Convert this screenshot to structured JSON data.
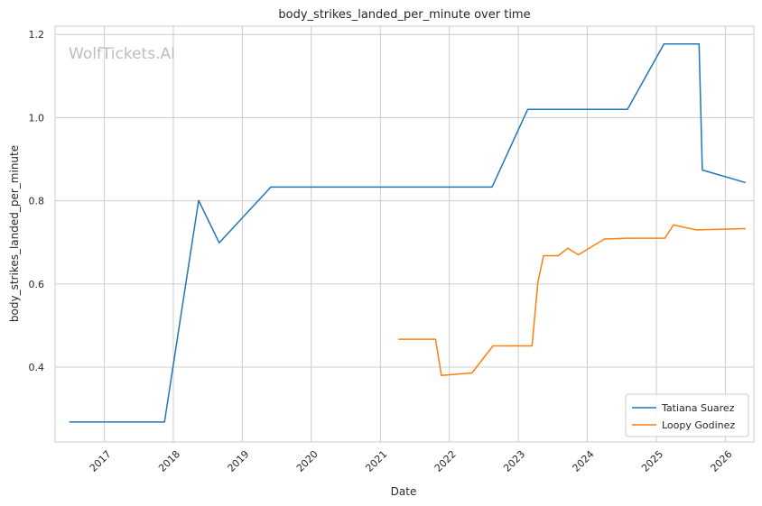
{
  "chart_data": {
    "type": "line",
    "title": "body_strikes_landed_per_minute over time",
    "xlabel": "Date",
    "ylabel": "body_strikes_landed_per_minute",
    "watermark": "WolfTickets.AI",
    "grid": true,
    "legend_position": "bottom-right",
    "xlim": [
      "2016-04-15",
      "2026-06-01"
    ],
    "ylim": [
      0.22,
      1.22
    ],
    "x_ticks": [
      "2017-01-01",
      "2018-01-01",
      "2019-01-01",
      "2020-01-01",
      "2021-01-01",
      "2022-01-01",
      "2023-01-01",
      "2024-01-01",
      "2025-01-01",
      "2026-01-01"
    ],
    "x_tick_labels": [
      "2017",
      "2018",
      "2019",
      "2020",
      "2021",
      "2022",
      "2023",
      "2024",
      "2025",
      "2026"
    ],
    "y_ticks": [
      0.4,
      0.6,
      0.8,
      1.0,
      1.2
    ],
    "y_tick_labels": [
      "0.4",
      "0.6",
      "0.8",
      "1.0",
      "1.2"
    ],
    "series": [
      {
        "name": "Tatiana Suarez",
        "color": "#1f77b4",
        "points": [
          [
            "2016-07-01",
            0.268
          ],
          [
            "2017-11-15",
            0.268
          ],
          [
            "2018-05-15",
            0.801
          ],
          [
            "2018-09-01",
            0.699
          ],
          [
            "2019-06-01",
            0.833
          ],
          [
            "2022-08-15",
            0.833
          ],
          [
            "2023-02-20",
            1.02
          ],
          [
            "2024-08-01",
            1.02
          ],
          [
            "2025-02-10",
            1.177
          ],
          [
            "2025-08-15",
            1.177
          ],
          [
            "2025-09-01",
            0.874
          ],
          [
            "2026-04-15",
            0.844
          ]
        ]
      },
      {
        "name": "Loopy Godinez",
        "color": "#ff7f0e",
        "points": [
          [
            "2021-04-10",
            0.467
          ],
          [
            "2021-10-20",
            0.467
          ],
          [
            "2021-11-20",
            0.38
          ],
          [
            "2022-05-01",
            0.386
          ],
          [
            "2022-08-20",
            0.451
          ],
          [
            "2023-03-15",
            0.451
          ],
          [
            "2023-04-15",
            0.605
          ],
          [
            "2023-05-15",
            0.668
          ],
          [
            "2023-08-01",
            0.668
          ],
          [
            "2023-09-20",
            0.686
          ],
          [
            "2023-11-15",
            0.67
          ],
          [
            "2024-04-01",
            0.708
          ],
          [
            "2024-08-01",
            0.71
          ],
          [
            "2025-02-15",
            0.71
          ],
          [
            "2025-04-01",
            0.742
          ],
          [
            "2025-08-01",
            0.73
          ],
          [
            "2026-04-15",
            0.733
          ]
        ]
      }
    ]
  }
}
